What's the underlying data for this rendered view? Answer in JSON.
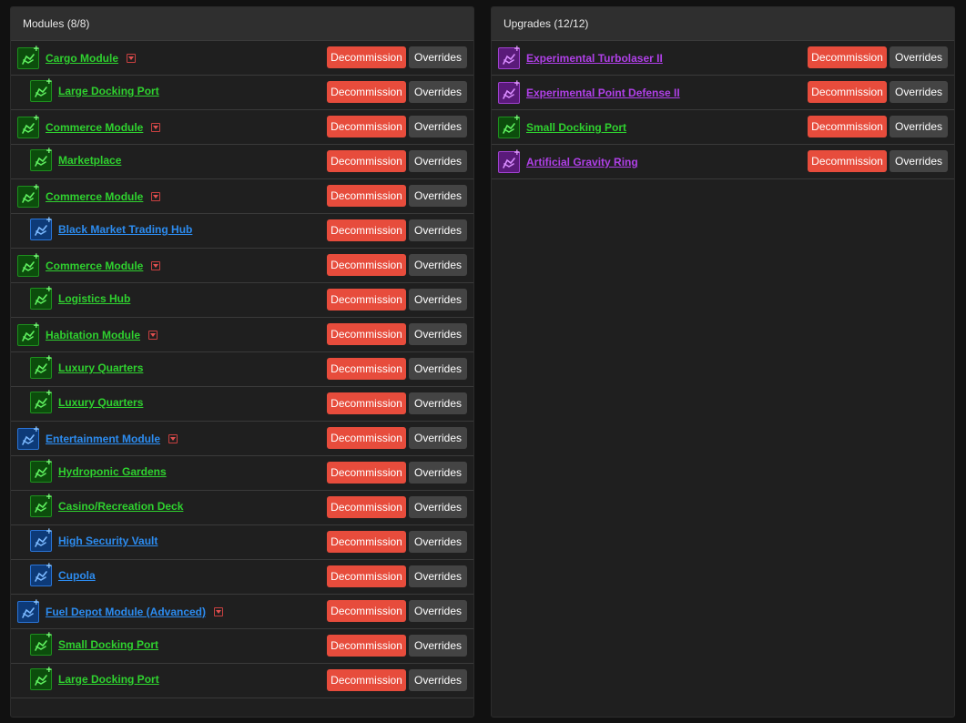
{
  "colors": {
    "green": "#2fd12f",
    "blue": "#2c8cf0",
    "purple": "#b040e8",
    "decommission": "#e74c3c",
    "overrides": "#444444"
  },
  "modules": {
    "title": "Modules (8/8)",
    "rows": [
      {
        "label": "Cargo Module",
        "level": "top",
        "color": "green",
        "icon": "ship-module-icon",
        "caret": true
      },
      {
        "label": "Large Docking Port",
        "level": "sub",
        "color": "green",
        "icon": "module-upgrade-icon"
      },
      {
        "label": "Commerce Module",
        "level": "top",
        "color": "green",
        "icon": "ship-module-icon",
        "caret": true
      },
      {
        "label": "Marketplace",
        "level": "sub",
        "color": "green",
        "icon": "module-upgrade-icon"
      },
      {
        "label": "Commerce Module",
        "level": "top",
        "color": "green",
        "icon": "ship-module-icon",
        "caret": true
      },
      {
        "label": "Black Market Trading Hub",
        "level": "sub",
        "color": "blue",
        "icon": "module-upgrade-icon"
      },
      {
        "label": "Commerce Module",
        "level": "top",
        "color": "green",
        "icon": "ship-module-icon",
        "caret": true
      },
      {
        "label": "Logistics Hub",
        "level": "sub",
        "color": "green",
        "icon": "module-upgrade-icon"
      },
      {
        "label": "Habitation Module",
        "level": "top",
        "color": "green",
        "icon": "ship-module-icon",
        "caret": true
      },
      {
        "label": "Luxury Quarters",
        "level": "sub",
        "color": "green",
        "icon": "module-upgrade-icon"
      },
      {
        "label": "Luxury Quarters",
        "level": "sub",
        "color": "green",
        "icon": "module-upgrade-icon"
      },
      {
        "label": "Entertainment Module",
        "level": "top",
        "color": "blue",
        "icon": "ship-module-icon",
        "caret": true
      },
      {
        "label": "Hydroponic Gardens",
        "level": "sub",
        "color": "green",
        "icon": "module-upgrade-icon"
      },
      {
        "label": "Casino/Recreation Deck",
        "level": "sub",
        "color": "green",
        "icon": "module-upgrade-icon"
      },
      {
        "label": "High Security Vault",
        "level": "sub",
        "color": "blue",
        "icon": "module-upgrade-icon"
      },
      {
        "label": "Cupola",
        "level": "sub",
        "color": "blue",
        "icon": "module-upgrade-icon"
      },
      {
        "label": "Fuel Depot Module (Advanced)",
        "level": "top",
        "color": "blue",
        "icon": "ship-module-icon",
        "caret": true
      },
      {
        "label": "Small Docking Port",
        "level": "sub",
        "color": "green",
        "icon": "module-upgrade-icon"
      },
      {
        "label": "Large Docking Port",
        "level": "sub",
        "color": "green",
        "icon": "module-upgrade-icon"
      }
    ]
  },
  "upgrades": {
    "title": "Upgrades (12/12)",
    "rows": [
      {
        "label": "Experimental Turbolaser II",
        "level": "top",
        "color": "purple",
        "icon": "upgrade-icon"
      },
      {
        "label": "Experimental Point Defense II",
        "level": "top",
        "color": "purple",
        "icon": "upgrade-icon"
      },
      {
        "label": "Small Docking Port",
        "level": "top",
        "color": "green",
        "icon": "upgrade-icon"
      },
      {
        "label": "Artificial Gravity Ring",
        "level": "top",
        "color": "purple",
        "icon": "upgrade-icon"
      }
    ]
  },
  "buttons": {
    "decommission": "Decommission",
    "overrides": "Overrides"
  },
  "glyphs": {
    "plus": "+"
  }
}
